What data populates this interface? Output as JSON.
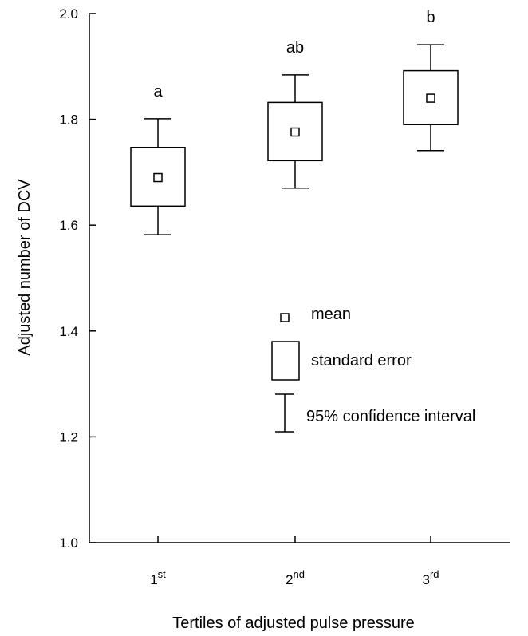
{
  "chart_data": {
    "type": "box",
    "xlabel": "Tertiles of adjusted pulse pressure",
    "ylabel": "Adjusted number of DCV",
    "ylim": [
      1.0,
      2.0
    ],
    "yticks": [
      "1.0",
      "1.2",
      "1.4",
      "1.6",
      "1.8",
      "2.0"
    ],
    "categories": [
      {
        "base": "1",
        "sup": "st"
      },
      {
        "base": "2",
        "sup": "nd"
      },
      {
        "base": "3",
        "sup": "rd"
      }
    ],
    "groups": [
      {
        "mean": 1.69,
        "se_low": 1.636,
        "se_high": 1.747,
        "ci_low": 1.582,
        "ci_high": 1.801,
        "label": "a"
      },
      {
        "mean": 1.776,
        "se_low": 1.722,
        "se_high": 1.832,
        "ci_low": 1.67,
        "ci_high": 1.884,
        "label": "ab"
      },
      {
        "mean": 1.84,
        "se_low": 1.79,
        "se_high": 1.892,
        "ci_low": 1.741,
        "ci_high": 1.941,
        "label": "b"
      }
    ],
    "legend": {
      "position": "center-right",
      "mean": "mean",
      "se": "standard error",
      "ci": "95% confidence interval"
    },
    "grid": false
  }
}
